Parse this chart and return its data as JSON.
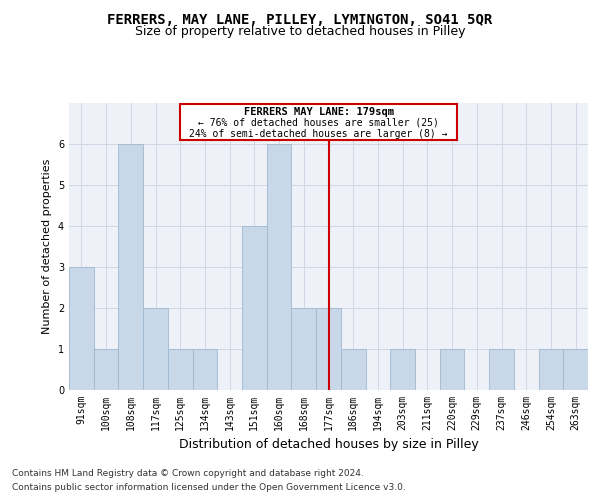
{
  "title": "FERRERS, MAY LANE, PILLEY, LYMINGTON, SO41 5QR",
  "subtitle": "Size of property relative to detached houses in Pilley",
  "xlabel": "Distribution of detached houses by size in Pilley",
  "ylabel": "Number of detached properties",
  "categories": [
    "91sqm",
    "100sqm",
    "108sqm",
    "117sqm",
    "125sqm",
    "134sqm",
    "143sqm",
    "151sqm",
    "160sqm",
    "168sqm",
    "177sqm",
    "186sqm",
    "194sqm",
    "203sqm",
    "211sqm",
    "220sqm",
    "229sqm",
    "237sqm",
    "246sqm",
    "254sqm",
    "263sqm"
  ],
  "values": [
    3,
    1,
    6,
    2,
    1,
    1,
    0,
    4,
    6,
    2,
    2,
    1,
    0,
    1,
    0,
    1,
    0,
    1,
    0,
    1,
    1
  ],
  "bar_color": "#c8d8e8",
  "bar_edgecolor": "#a0b8d0",
  "vline_x_index": 10,
  "vline_color": "#cc0000",
  "annotation_title": "FERRERS MAY LANE: 179sqm",
  "annotation_line1": "← 76% of detached houses are smaller (25)",
  "annotation_line2": "24% of semi-detached houses are larger (8) →",
  "annotation_box_color": "#ffffff",
  "annotation_box_edgecolor": "#cc0000",
  "ylim": [
    0,
    7
  ],
  "yticks": [
    0,
    1,
    2,
    3,
    4,
    5,
    6
  ],
  "grid_color": "#d0d8e8",
  "background_color": "#eef2f8",
  "footer_line1": "Contains HM Land Registry data © Crown copyright and database right 2024.",
  "footer_line2": "Contains public sector information licensed under the Open Government Licence v3.0.",
  "title_fontsize": 10,
  "subtitle_fontsize": 9,
  "xlabel_fontsize": 9,
  "ylabel_fontsize": 8,
  "tick_fontsize": 7,
  "footer_fontsize": 6.5
}
